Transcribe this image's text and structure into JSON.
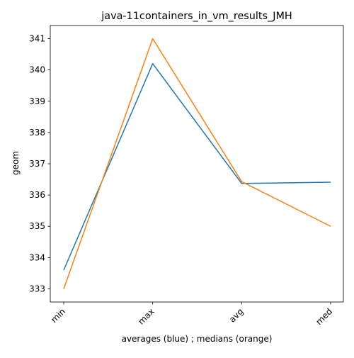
{
  "chart_data": {
    "type": "line",
    "title": "java-11containers_in_vm_results_JMH",
    "xlabel": "averages (blue) ; medians (orange)",
    "ylabel": "geom",
    "categories": [
      "min",
      "max",
      "avg",
      "med"
    ],
    "yticks": [
      333,
      334,
      335,
      336,
      337,
      338,
      339,
      340,
      341
    ],
    "ylim": [
      332.58,
      341.42
    ],
    "grid": false,
    "series": [
      {
        "color": "#1f77b4",
        "values": [
          333.6,
          340.2,
          336.37,
          336.41
        ]
      },
      {
        "color": "#ff7f0e",
        "values": [
          333.0,
          341.0,
          336.43,
          335.0
        ]
      }
    ]
  }
}
